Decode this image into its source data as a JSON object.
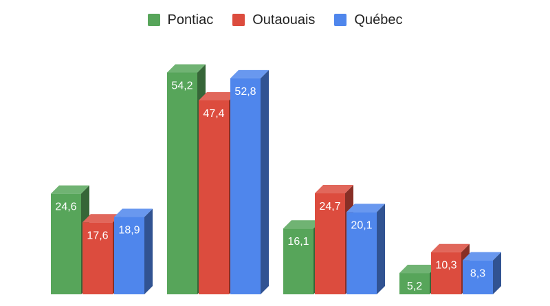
{
  "chart_data": {
    "type": "bar",
    "style": "3d-clustered-column",
    "categories": [
      "",
      "",
      "",
      ""
    ],
    "series": [
      {
        "name": "Pontiac",
        "color": "#57a55a",
        "values": [
          24.6,
          54.2,
          16.1,
          5.2
        ],
        "labels": [
          "24,6",
          "54,2",
          "16,1",
          "5,2"
        ]
      },
      {
        "name": "Outaouais",
        "color": "#dc4c3e",
        "values": [
          17.6,
          47.4,
          24.7,
          10.3
        ],
        "labels": [
          "17,6",
          "47,4",
          "24,7",
          "10,3"
        ]
      },
      {
        "name": "Québec",
        "color": "#4f86ec",
        "values": [
          18.9,
          52.8,
          20.1,
          8.3
        ],
        "labels": [
          "18,9",
          "52,8",
          "20,1",
          "8,3"
        ]
      }
    ],
    "ylim": [
      0,
      60
    ],
    "grid": false,
    "legend": "top-center",
    "title": "",
    "xlabel": "",
    "ylabel": ""
  }
}
